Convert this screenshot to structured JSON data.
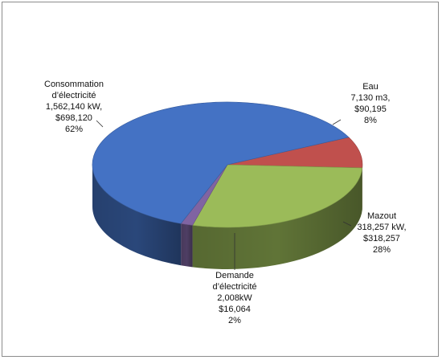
{
  "chart_data": {
    "type": "pie",
    "title": "",
    "style": "3d",
    "slices": [
      {
        "key": "consommation",
        "lines": [
          "Consommation",
          "d’électricité",
          "1,562,140 kW,",
          "$698,120",
          "62%"
        ],
        "value": 698120,
        "percent": 62,
        "color": "#4472c4"
      },
      {
        "key": "eau",
        "lines": [
          "Eau",
          "7,130 m3,",
          "$90,195",
          "8%"
        ],
        "value": 90195,
        "percent": 8,
        "color": "#c0504d"
      },
      {
        "key": "mazout",
        "lines": [
          "Mazout",
          "318,257 kW,",
          "$318,257",
          "28%"
        ],
        "value": 318257,
        "percent": 28,
        "color": "#9bbb59"
      },
      {
        "key": "demande",
        "lines": [
          "Demande",
          "d’électricité",
          "2,008kW",
          "$16,064",
          "2%"
        ],
        "value": 16064,
        "percent": 2,
        "color": "#8064a2"
      }
    ]
  }
}
